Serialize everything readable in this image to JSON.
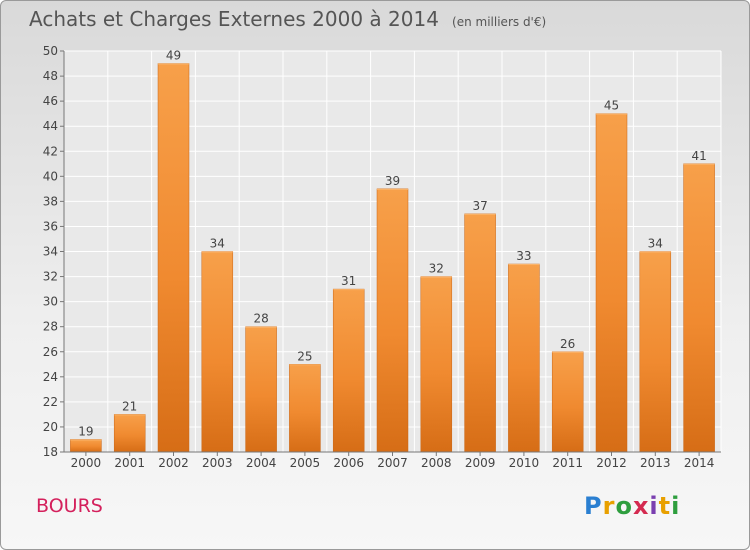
{
  "header": {
    "title": "Achats et Charges Externes 2000 à 2014",
    "unit": "(en milliers d'€)"
  },
  "footer": {
    "commune": "BOURS",
    "logo_text": "Proxiti",
    "logo_colors": [
      "#2a7fd1",
      "#e8a000",
      "#2e9e3e",
      "#d42a50",
      "#7a3fb0",
      "#e8a000",
      "#2e9e3e"
    ]
  },
  "chart_data": {
    "type": "bar",
    "categories": [
      "2000",
      "2001",
      "2002",
      "2003",
      "2004",
      "2005",
      "2006",
      "2007",
      "2008",
      "2009",
      "2010",
      "2011",
      "2012",
      "2013",
      "2014"
    ],
    "values": [
      19,
      21,
      49,
      34,
      28,
      25,
      31,
      39,
      32,
      37,
      33,
      26,
      45,
      34,
      41
    ],
    "ylim": [
      18,
      50
    ],
    "yticks": [
      18,
      20,
      22,
      24,
      26,
      28,
      30,
      32,
      34,
      36,
      38,
      40,
      42,
      44,
      46,
      48,
      50
    ],
    "grid": true,
    "bar_color": "#f28a2c",
    "grid_color": "#ffffff"
  }
}
